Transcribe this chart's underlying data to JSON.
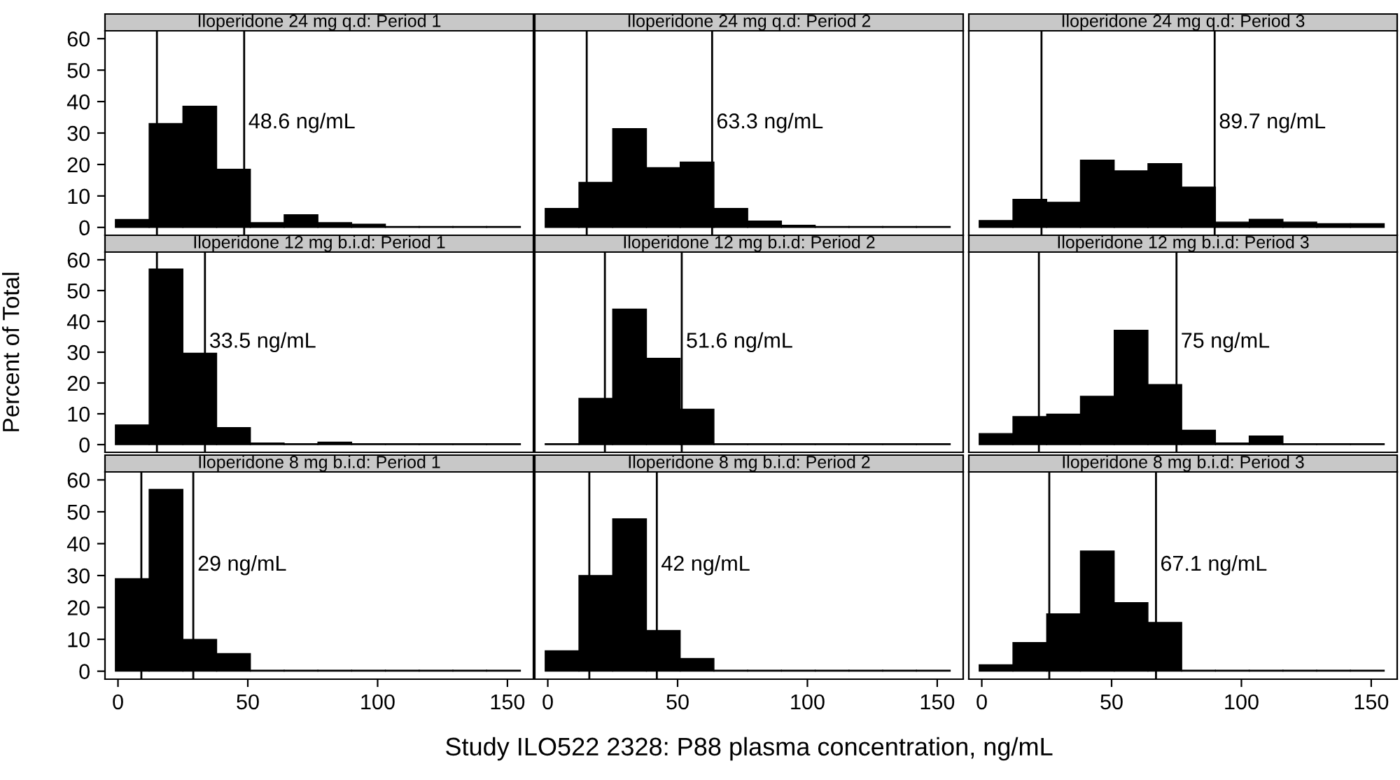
{
  "chart_data": [
    {
      "type": "histogram",
      "title": "Iloperidone 24 mg q.d: Period 1",
      "bins": [
        -1,
        12,
        25,
        38,
        51,
        64,
        77,
        90,
        103,
        116,
        129,
        142,
        155
      ],
      "values": [
        2.5,
        33,
        38.5,
        18.5,
        1.5,
        4,
        1.5,
        1,
        0.3,
        0.3,
        0.3,
        0.3
      ],
      "color": "#000000",
      "ref_lines": [
        {
          "axis": "x",
          "value": 15
        },
        {
          "axis": "x",
          "value": 48.6,
          "label": "48.6 ng/mL"
        }
      ],
      "xlim": [
        -5,
        160
      ],
      "xticks": [
        0,
        50,
        100,
        150
      ],
      "ylim": [
        -2.5,
        62.5
      ],
      "yticks": [
        0,
        10,
        20,
        30,
        40,
        50,
        60
      ],
      "tick_labels": "y"
    },
    {
      "type": "histogram",
      "title": "Iloperidone 24 mg q.d: Period 2",
      "bins": [
        -1,
        12,
        25,
        38,
        51,
        64,
        77,
        90,
        103,
        116,
        129,
        142,
        155
      ],
      "values": [
        6,
        14.3,
        31.4,
        19,
        20.8,
        6,
        2,
        0.7,
        0.3,
        0.3,
        0.3,
        0.3
      ],
      "color": "#000000",
      "ref_lines": [
        {
          "axis": "x",
          "value": 15
        },
        {
          "axis": "x",
          "value": 63.3,
          "label": "63.3 ng/mL"
        }
      ],
      "xlim": [
        -5,
        160
      ],
      "xticks": [
        0,
        50,
        100,
        150
      ],
      "ylim": [
        -2.5,
        62.5
      ],
      "yticks": [
        0,
        10,
        20,
        30,
        40,
        50,
        60
      ],
      "tick_labels": false
    },
    {
      "type": "histogram",
      "title": "Iloperidone 24 mg q.d: Period 3",
      "bins": [
        -1,
        12,
        25,
        38,
        51,
        64,
        77,
        90,
        103,
        116,
        129,
        142,
        155
      ],
      "values": [
        2.2,
        8.9,
        8,
        21.4,
        18,
        20.3,
        12.8,
        1.7,
        2.6,
        1.7,
        1.2,
        1.2
      ],
      "color": "#000000",
      "ref_lines": [
        {
          "axis": "x",
          "value": 23
        },
        {
          "axis": "x",
          "value": 89.7,
          "label": "89.7 ng/mL"
        }
      ],
      "xlim": [
        -5,
        160
      ],
      "xticks": [
        0,
        50,
        100,
        150
      ],
      "ylim": [
        -2.5,
        62.5
      ],
      "yticks": [
        0,
        10,
        20,
        30,
        40,
        50,
        60
      ],
      "tick_labels": false
    },
    {
      "type": "histogram",
      "title": "Iloperidone 12 mg b.i.d: Period 1",
      "ylabel": "Percent of Total",
      "bins": [
        -1,
        12,
        25,
        38,
        51,
        64,
        77,
        90,
        103,
        116,
        129,
        142,
        155
      ],
      "values": [
        6.4,
        57,
        29.7,
        5.5,
        0.5,
        0.3,
        0.8,
        0.3,
        0.3,
        0.3,
        0.3,
        0.3
      ],
      "color": "#000000",
      "ref_lines": [
        {
          "axis": "x",
          "value": 15
        },
        {
          "axis": "x",
          "value": 33.5,
          "label": "33.5 ng/mL"
        }
      ],
      "xlim": [
        -5,
        160
      ],
      "xticks": [
        0,
        50,
        100,
        150
      ],
      "ylim": [
        -2.5,
        62.5
      ],
      "yticks": [
        0,
        10,
        20,
        30,
        40,
        50,
        60
      ],
      "tick_labels": "y"
    },
    {
      "type": "histogram",
      "title": "Iloperidone 12 mg b.i.d: Period 2",
      "bins": [
        -1,
        12,
        25,
        38,
        51,
        64,
        77,
        90,
        103,
        116,
        129,
        142,
        155
      ],
      "values": [
        0.3,
        15,
        44,
        28,
        11.5,
        0.3,
        0.3,
        0.3,
        0.3,
        0.3,
        0.3,
        0.3
      ],
      "color": "#000000",
      "ref_lines": [
        {
          "axis": "x",
          "value": 22
        },
        {
          "axis": "x",
          "value": 51.6,
          "label": "51.6 ng/mL"
        }
      ],
      "xlim": [
        -5,
        160
      ],
      "xticks": [
        0,
        50,
        100,
        150
      ],
      "ylim": [
        -2.5,
        62.5
      ],
      "yticks": [
        0,
        10,
        20,
        30,
        40,
        50,
        60
      ],
      "tick_labels": false
    },
    {
      "type": "histogram",
      "title": "Iloperidone 12 mg b.i.d: Period 3",
      "bins": [
        -1,
        12,
        25,
        38,
        51,
        64,
        77,
        90,
        103,
        116,
        129,
        142,
        155
      ],
      "values": [
        3.6,
        9.1,
        9.9,
        15.7,
        37.1,
        19.5,
        4.7,
        0.5,
        2.8,
        0.3,
        0.3,
        0.3
      ],
      "color": "#000000",
      "ref_lines": [
        {
          "axis": "x",
          "value": 22
        },
        {
          "axis": "x",
          "value": 75,
          "label": "75 ng/mL"
        }
      ],
      "xlim": [
        -5,
        160
      ],
      "xticks": [
        0,
        50,
        100,
        150
      ],
      "ylim": [
        -2.5,
        62.5
      ],
      "yticks": [
        0,
        10,
        20,
        30,
        40,
        50,
        60
      ],
      "tick_labels": false
    },
    {
      "type": "histogram",
      "title": "Iloperidone 8 mg b.i.d: Period 1",
      "bins": [
        -1,
        12,
        25,
        38,
        51,
        64,
        77,
        90,
        103,
        116,
        129,
        142,
        155
      ],
      "values": [
        29,
        57,
        10,
        5.5,
        0.3,
        0.3,
        0.3,
        0.3,
        0.3,
        0.3,
        0.3,
        0.3
      ],
      "color": "#000000",
      "ref_lines": [
        {
          "axis": "x",
          "value": 9
        },
        {
          "axis": "x",
          "value": 29,
          "label": "29 ng/mL"
        }
      ],
      "xlim": [
        -5,
        160
      ],
      "xticks": [
        0,
        50,
        100,
        150
      ],
      "ylim": [
        -2.5,
        62.5
      ],
      "yticks": [
        0,
        10,
        20,
        30,
        40,
        50,
        60
      ]
    },
    {
      "type": "histogram",
      "title": "Iloperidone 8 mg b.i.d: Period 2",
      "xlabel": "Study ILO522 2328: P88 plasma concentration, ng/mL",
      "bins": [
        -1,
        12,
        25,
        38,
        51,
        64,
        77,
        90,
        103,
        116,
        129,
        142,
        155
      ],
      "values": [
        6.4,
        30,
        47.8,
        12.8,
        4,
        0.3,
        0.3,
        0.3,
        0.3,
        0.3,
        0.3,
        0.3
      ],
      "color": "#000000",
      "ref_lines": [
        {
          "axis": "x",
          "value": 16
        },
        {
          "axis": "x",
          "value": 42,
          "label": "42 ng/mL"
        }
      ],
      "xlim": [
        -5,
        160
      ],
      "xticks": [
        0,
        50,
        100,
        150
      ],
      "ylim": [
        -2.5,
        62.5
      ],
      "yticks": [
        0,
        10,
        20,
        30,
        40,
        50,
        60
      ],
      "tick_labels": "x"
    },
    {
      "type": "histogram",
      "title": "Iloperidone 8 mg b.i.d: Period 3",
      "bins": [
        -1,
        12,
        25,
        38,
        51,
        64,
        77,
        90,
        103,
        116,
        129,
        142,
        155
      ],
      "values": [
        2,
        9,
        18,
        37.7,
        21.5,
        15.3,
        0.3,
        0.3,
        0.3,
        0.3,
        0.3,
        0.3
      ],
      "color": "#000000",
      "ref_lines": [
        {
          "axis": "x",
          "value": 26
        },
        {
          "axis": "x",
          "value": 67.1,
          "label": "67.1 ng/mL"
        }
      ],
      "xlim": [
        -5,
        160
      ],
      "xticks": [
        0,
        50,
        100,
        150
      ],
      "ylim": [
        -2.5,
        62.5
      ],
      "yticks": [
        0,
        10,
        20,
        30,
        40,
        50,
        60
      ],
      "tick_labels": "x"
    }
  ]
}
